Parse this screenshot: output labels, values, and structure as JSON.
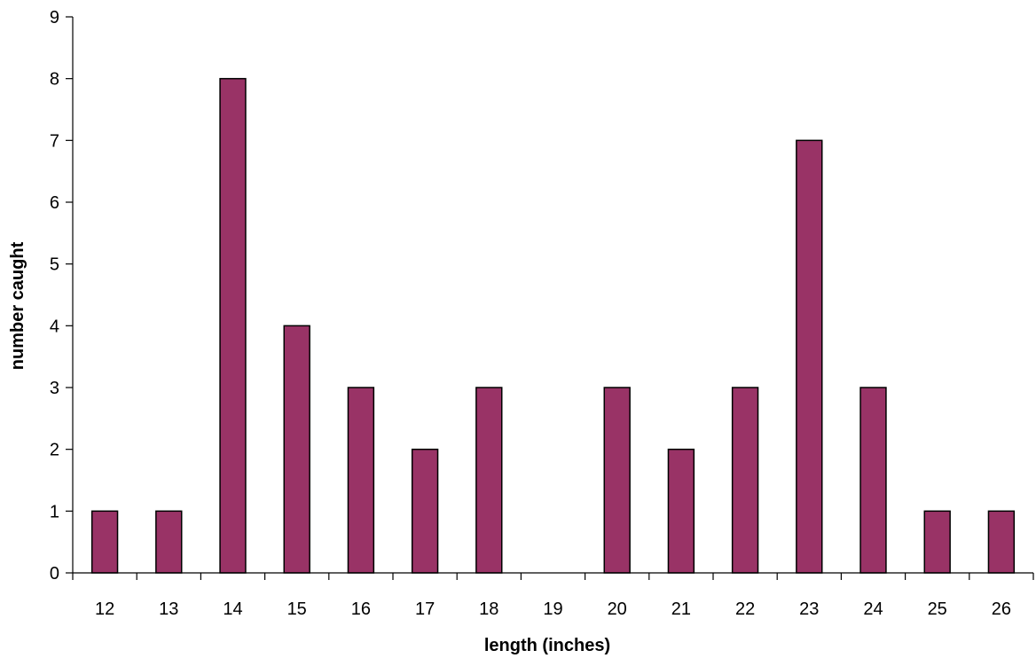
{
  "chart_data": {
    "type": "bar",
    "title": "",
    "xlabel": "length (inches)",
    "ylabel": "number caught",
    "categories": [
      "12",
      "13",
      "14",
      "15",
      "16",
      "17",
      "18",
      "19",
      "20",
      "21",
      "22",
      "23",
      "24",
      "25",
      "26"
    ],
    "values": [
      1,
      1,
      8,
      4,
      3,
      2,
      3,
      0,
      3,
      2,
      3,
      7,
      3,
      1,
      1
    ],
    "ylim": [
      0,
      9
    ],
    "yticks": [
      "0",
      "1",
      "2",
      "3",
      "4",
      "5",
      "6",
      "7",
      "8",
      "9"
    ],
    "grid": false,
    "legend": "none",
    "bar_color": "#993366",
    "bar_edge_color": "#000000"
  }
}
